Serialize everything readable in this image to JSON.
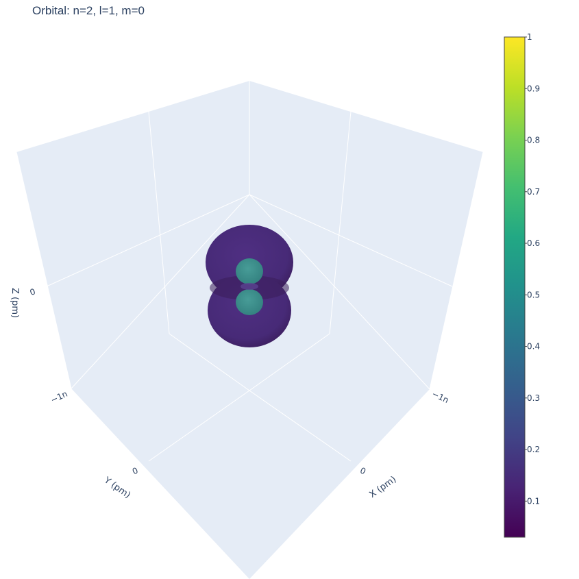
{
  "title": "Orbital: n=2, l=1, m=0",
  "chart_data": {
    "type": "3d-isosurface",
    "title": "Orbital: n=2, l=1, m=0",
    "axes": {
      "x": {
        "label": "X (pm)",
        "ticks": [
          "−1n",
          "0"
        ]
      },
      "y": {
        "label": "Y (pm)",
        "ticks": [
          "−1n",
          "0"
        ]
      },
      "z": {
        "label": "Z (pm)",
        "ticks": [
          "0"
        ]
      }
    },
    "surfaces": [
      {
        "name": "outer-lobes",
        "value": 0.1
      },
      {
        "name": "inner-lobes",
        "value": 0.5
      }
    ],
    "colorbar": {
      "colorscale": "Viridis",
      "min": 0.03,
      "max": 1,
      "ticks": [
        "0.1",
        "0.2",
        "0.3",
        "0.4",
        "0.5",
        "0.6",
        "0.7",
        "0.8",
        "0.9",
        "1"
      ]
    },
    "colors": {
      "outer_lobe": "#472c7a",
      "outer_lobe_dark": "#3b1d5a",
      "inner_lobe": "#3b8f8e",
      "scene_bg": "#e5ecf6",
      "grid": "#ffffff",
      "text": "#2a3f5f"
    }
  }
}
